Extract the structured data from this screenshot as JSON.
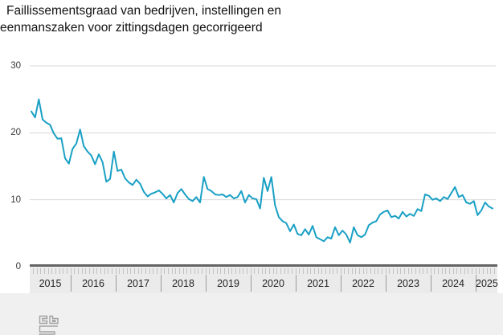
{
  "title": {
    "line1": "Faillissementsgraad van bedrijven, instellingen en",
    "line2": "eenmanszaken voor zittingsdagen gecorrigeerd"
  },
  "y_axis": {
    "ticks": [
      "30",
      "20",
      "10",
      "0"
    ]
  },
  "x_axis": {
    "years": [
      "2015",
      "2016",
      "2017",
      "2018",
      "2019",
      "2020",
      "2021",
      "2022",
      "2023",
      "2024",
      "2025"
    ]
  },
  "logo": {
    "name": "cbs-logo"
  },
  "colors": {
    "line": "#1aa0c5",
    "gridline": "#d8d8d8",
    "ruler_background": "#ebebeb",
    "ruler_top_bar": "#646464",
    "minor_tick": "#c2c2c2",
    "year_separator": "#9b9b9b",
    "footer_background": "#f0f0f0",
    "logo_stroke": "#a2a2a2"
  },
  "chart_data": {
    "type": "line",
    "title": "Faillissementsgraad van bedrijven, instellingen en eenmanszaken voor zittingsdagen gecorrigeerd",
    "frequency": "monthly",
    "x_start": "2015-01",
    "x_end": "2025-04",
    "xlabel": "",
    "ylabel": "",
    "ylim": [
      0,
      30
    ],
    "yticks": [
      0,
      10,
      20,
      30
    ],
    "grid": true,
    "legend_position": "none",
    "series": [
      {
        "name": "Faillissementsgraad",
        "values": [
          23.2,
          22.3,
          25.0,
          22.0,
          21.5,
          21.2,
          19.9,
          19.1,
          19.2,
          16.2,
          15.4,
          17.6,
          18.4,
          20.5,
          18.0,
          17.2,
          16.6,
          15.3,
          16.8,
          15.6,
          12.7,
          13.1,
          17.2,
          14.3,
          14.5,
          13.2,
          12.6,
          12.2,
          13.0,
          12.4,
          11.2,
          10.5,
          10.9,
          11.1,
          11.4,
          10.9,
          10.2,
          10.7,
          9.6,
          11.0,
          11.6,
          10.8,
          10.1,
          9.8,
          10.4,
          9.6,
          13.4,
          11.6,
          11.3,
          10.8,
          10.7,
          10.8,
          10.4,
          10.7,
          10.2,
          10.4,
          11.3,
          9.6,
          10.7,
          10.2,
          10.1,
          8.7,
          13.3,
          11.3,
          13.4,
          9.2,
          7.4,
          6.8,
          6.5,
          5.3,
          6.3,
          4.9,
          4.7,
          5.6,
          4.8,
          6.1,
          4.4,
          4.1,
          3.8,
          4.4,
          4.2,
          5.9,
          4.7,
          5.4,
          4.8,
          3.6,
          5.9,
          4.7,
          4.4,
          4.8,
          6.2,
          6.6,
          6.8,
          7.8,
          8.2,
          8.4,
          7.4,
          7.6,
          7.2,
          8.2,
          7.5,
          7.9,
          7.6,
          8.6,
          8.3,
          10.8,
          10.6,
          10.0,
          10.2,
          9.8,
          10.4,
          10.1,
          11.0,
          11.9,
          10.4,
          10.7,
          9.6,
          9.4,
          9.8,
          7.7,
          8.4,
          9.6,
          9.0,
          8.7
        ]
      }
    ]
  }
}
